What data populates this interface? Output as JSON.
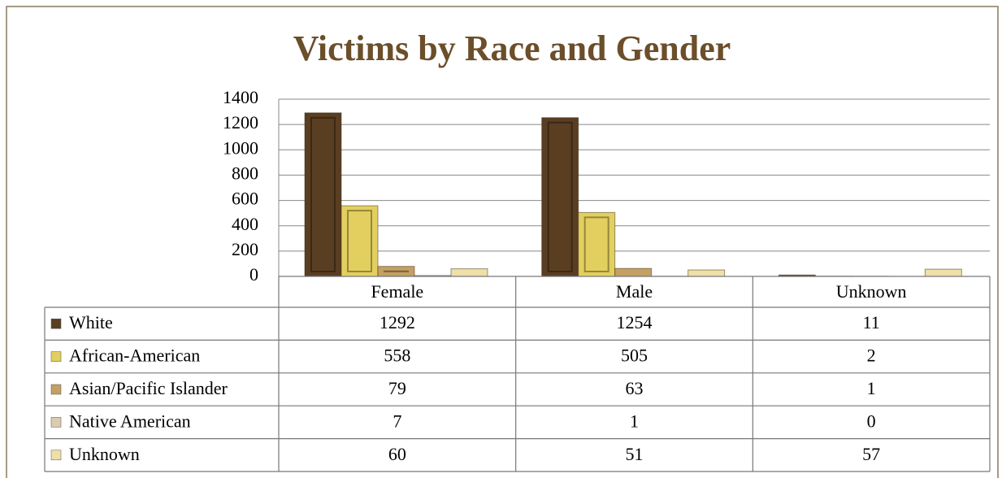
{
  "chart_data": {
    "type": "bar",
    "title": "Victims by Race and Gender",
    "categories": [
      "Female",
      "Male",
      "Unknown"
    ],
    "series": [
      {
        "name": "White",
        "color": "#5a3e22",
        "values": [
          1292,
          1254,
          11
        ]
      },
      {
        "name": "African-American",
        "color": "#e3cf5f",
        "values": [
          558,
          505,
          2
        ]
      },
      {
        "name": "Asian/Pacific Islander",
        "color": "#c4a063",
        "values": [
          79,
          63,
          1
        ]
      },
      {
        "name": "Native American",
        "color": "#d9ccb0",
        "values": [
          7,
          1,
          0
        ]
      },
      {
        "name": "Unknown",
        "color": "#eee0a6",
        "values": [
          60,
          51,
          57
        ]
      }
    ],
    "ylim": [
      0,
      1400
    ],
    "yticks": [
      0,
      200,
      400,
      600,
      800,
      1000,
      1200,
      1400
    ],
    "grid": true
  }
}
